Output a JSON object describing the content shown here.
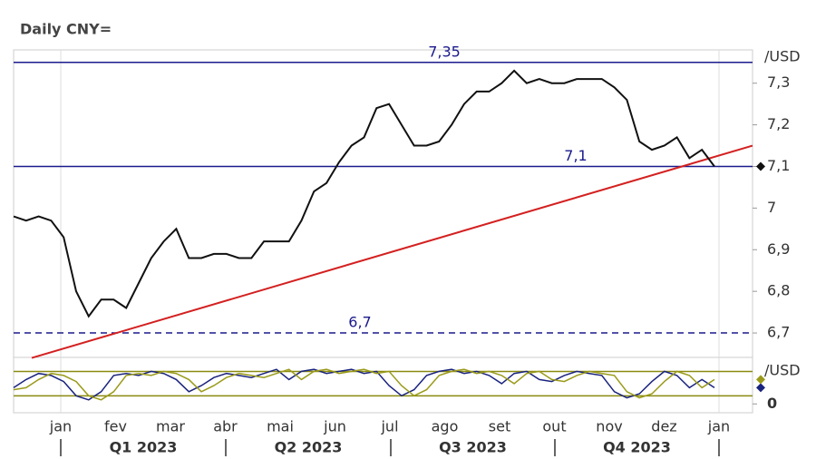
{
  "chart_data": {
    "type": "line",
    "title": "Daily CNY=",
    "y_axis_label": "/USD",
    "months": [
      "jan",
      "fev",
      "mar",
      "abr",
      "mai",
      "jun",
      "jul",
      "ago",
      "set",
      "out",
      "nov",
      "dez",
      "jan"
    ],
    "quarters": [
      "Q1 2023",
      "Q2 2023",
      "Q3 2023",
      "Q4 2023"
    ],
    "series": [
      {
        "color": "#111111",
        "values": [
          6.98,
          6.97,
          6.98,
          6.97,
          6.93,
          6.8,
          6.74,
          6.78,
          6.78,
          6.76,
          6.82,
          6.88,
          6.92,
          6.95,
          6.88,
          6.88,
          6.89,
          6.89,
          6.88,
          6.88,
          6.92,
          6.92,
          6.92,
          6.97,
          7.04,
          7.06,
          7.11,
          7.15,
          7.17,
          7.24,
          7.25,
          7.2,
          7.15,
          7.15,
          7.16,
          7.2,
          7.25,
          7.28,
          7.28,
          7.3,
          7.33,
          7.3,
          7.31,
          7.3,
          7.3,
          7.31,
          7.31,
          7.31,
          7.29,
          7.26,
          7.16,
          7.14,
          7.15,
          7.17,
          7.12,
          7.14,
          7.1
        ]
      }
    ],
    "ylim": [
      6.65,
      7.38
    ],
    "yticks": [
      {
        "value": 6.7,
        "label": "6,7"
      },
      {
        "value": 6.8,
        "label": "6,8"
      },
      {
        "value": 6.9,
        "label": "6,9"
      },
      7,
      {
        "value": 7.1,
        "label": "7,1"
      },
      {
        "value": 7.2,
        "label": "7,2"
      },
      {
        "value": 7.3,
        "label": "7,3"
      }
    ],
    "hlines": [
      {
        "value": 7.35,
        "label": "7,35",
        "color": "#1a1a8c",
        "dashed": false
      },
      {
        "value": 7.1,
        "label": "7,1",
        "color": "#1a1a8c",
        "dashed": false
      },
      {
        "value": 6.7,
        "label": "6,7",
        "color": "#1a1a8c",
        "dashed": true
      }
    ],
    "trendline": {
      "color": "#d42020",
      "start": 6.64,
      "end": 7.15
    },
    "oscillator": {
      "y_axis_label": "/USD",
      "ylim": [
        -15,
        110
      ],
      "yticks": [
        0
      ],
      "levels": [
        20,
        80
      ],
      "level_color": "#8a8a10",
      "series": [
        {
          "color": "#1a237e",
          "values": [
            40,
            60,
            75,
            70,
            55,
            20,
            10,
            30,
            70,
            75,
            70,
            80,
            75,
            60,
            30,
            45,
            65,
            75,
            70,
            65,
            75,
            85,
            60,
            80,
            85,
            75,
            80,
            85,
            75,
            80,
            45,
            20,
            35,
            70,
            80,
            85,
            75,
            80,
            70,
            50,
            75,
            80,
            60,
            55,
            70,
            80,
            75,
            70,
            30,
            15,
            25,
            55,
            80,
            70,
            40,
            60,
            40
          ]
        },
        {
          "color": "#9a9a1a",
          "values": [
            35,
            40,
            60,
            75,
            70,
            55,
            20,
            10,
            30,
            70,
            75,
            70,
            80,
            75,
            60,
            30,
            45,
            65,
            75,
            70,
            65,
            75,
            85,
            60,
            80,
            85,
            75,
            80,
            85,
            75,
            80,
            45,
            20,
            35,
            70,
            80,
            85,
            75,
            80,
            70,
            50,
            75,
            80,
            60,
            55,
            70,
            80,
            75,
            70,
            30,
            15,
            25,
            55,
            80,
            70,
            40,
            60
          ]
        }
      ]
    }
  }
}
